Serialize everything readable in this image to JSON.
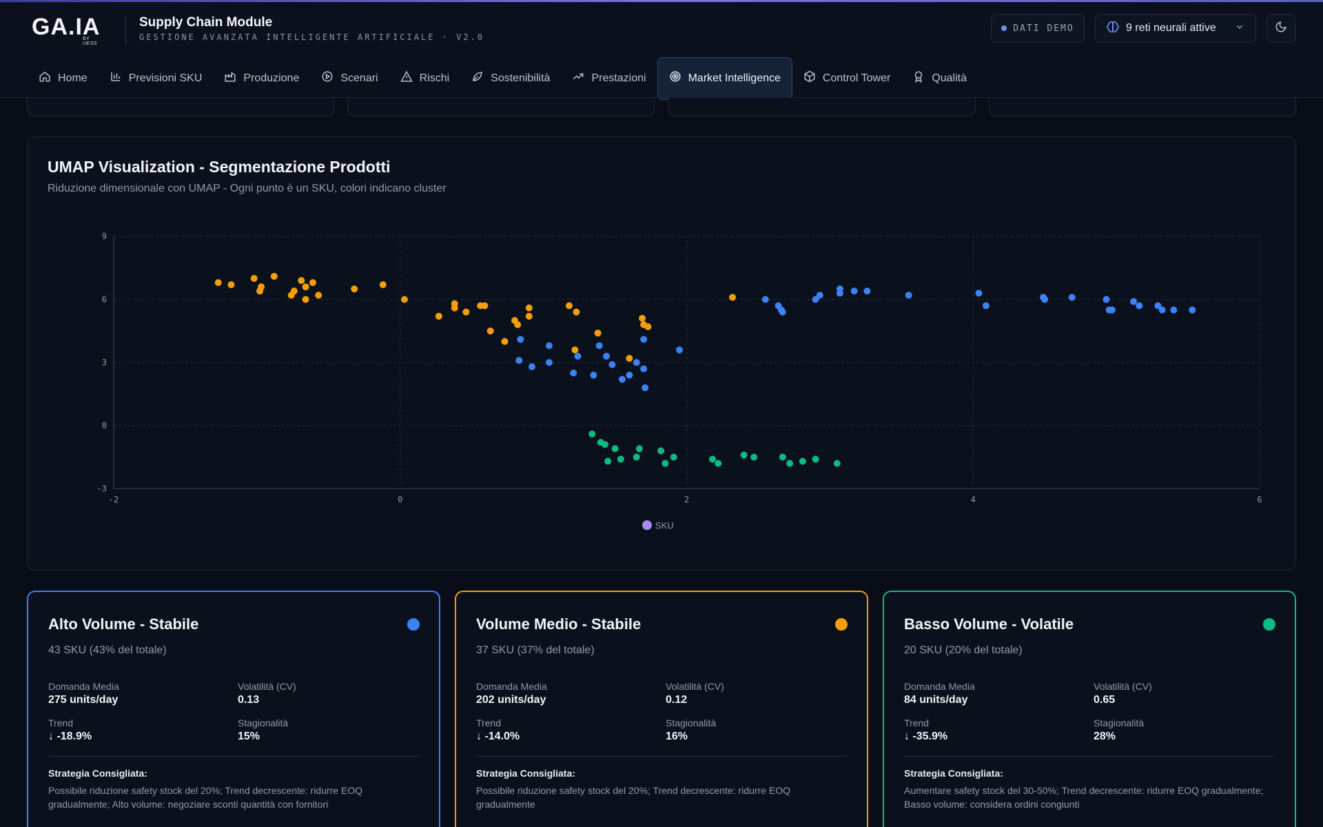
{
  "header": {
    "logo_text": "GA.IA",
    "logo_sub": "BY UESS",
    "app_title": "Supply Chain Module",
    "app_subtitle": "GESTIONE AVANZATA INTELLIGENTE ARTIFICIALE · V2.0",
    "demo_badge": "DATI DEMO",
    "nets_label": "9 reti neurali attive"
  },
  "nav": [
    {
      "label": "Home",
      "icon": "home-icon"
    },
    {
      "label": "Previsioni SKU",
      "icon": "bar-chart-icon"
    },
    {
      "label": "Produzione",
      "icon": "factory-icon"
    },
    {
      "label": "Scenari",
      "icon": "play-circle-icon"
    },
    {
      "label": "Rischi",
      "icon": "warning-icon"
    },
    {
      "label": "Sostenibilità",
      "icon": "leaf-icon"
    },
    {
      "label": "Prestazioni",
      "icon": "trending-up-icon"
    },
    {
      "label": "Market Intelligence",
      "icon": "target-icon",
      "active": true
    },
    {
      "label": "Control Tower",
      "icon": "box-icon"
    },
    {
      "label": "Qualità",
      "icon": "award-icon"
    }
  ],
  "umap": {
    "title": "UMAP Visualization - Segmentazione Prodotti",
    "description": "Riduzione dimensionale con UMAP - Ogni punto è un SKU, colori indicano cluster"
  },
  "chart_data": {
    "type": "scatter",
    "xlim": [
      -2,
      6
    ],
    "ylim": [
      -3,
      9
    ],
    "x_ticks": [
      "-2",
      "0",
      "2",
      "4",
      "6"
    ],
    "y_ticks": [
      "-3",
      "0",
      "3",
      "6",
      "9"
    ],
    "grid": true,
    "legend": [
      "SKU"
    ],
    "legend_position": "bottom-center",
    "colors": {
      "blue": "#3b82f6",
      "orange": "#f59e0b",
      "green": "#10b981",
      "legend": "#a78bfa"
    },
    "series": [
      {
        "color": "orange",
        "points": [
          [
            -1.27,
            6.8
          ],
          [
            -1.18,
            6.7
          ],
          [
            -1.02,
            7.0
          ],
          [
            -0.97,
            6.6
          ],
          [
            -0.98,
            6.4
          ],
          [
            -0.88,
            7.1
          ],
          [
            -0.76,
            6.2
          ],
          [
            -0.74,
            6.4
          ],
          [
            -0.69,
            6.9
          ],
          [
            -0.66,
            6.6
          ],
          [
            -0.66,
            6.0
          ],
          [
            -0.61,
            6.8
          ],
          [
            -0.57,
            6.2
          ],
          [
            -0.32,
            6.5
          ],
          [
            -0.12,
            6.7
          ],
          [
            0.03,
            6.0
          ],
          [
            0.27,
            5.2
          ],
          [
            0.38,
            5.8
          ],
          [
            0.38,
            5.6
          ],
          [
            0.46,
            5.4
          ],
          [
            0.56,
            5.7
          ],
          [
            0.59,
            5.7
          ],
          [
            0.63,
            4.5
          ],
          [
            0.73,
            4.0
          ],
          [
            0.8,
            5.0
          ],
          [
            0.82,
            4.8
          ],
          [
            0.9,
            5.2
          ],
          [
            0.9,
            5.6
          ],
          [
            1.18,
            5.7
          ],
          [
            1.23,
            5.4
          ],
          [
            1.22,
            3.6
          ],
          [
            1.38,
            4.4
          ],
          [
            1.6,
            3.2
          ],
          [
            1.69,
            5.1
          ],
          [
            1.7,
            4.8
          ],
          [
            1.73,
            4.7
          ],
          [
            2.32,
            6.1
          ]
        ]
      },
      {
        "color": "blue",
        "points": [
          [
            0.84,
            4.1
          ],
          [
            0.83,
            3.1
          ],
          [
            0.92,
            2.8
          ],
          [
            1.04,
            3.8
          ],
          [
            1.04,
            3.0
          ],
          [
            1.21,
            2.5
          ],
          [
            1.24,
            3.3
          ],
          [
            1.35,
            2.4
          ],
          [
            1.39,
            3.8
          ],
          [
            1.44,
            3.3
          ],
          [
            1.48,
            2.9
          ],
          [
            1.55,
            2.2
          ],
          [
            1.6,
            2.4
          ],
          [
            1.65,
            3.0
          ],
          [
            1.7,
            2.7
          ],
          [
            1.71,
            1.8
          ],
          [
            1.7,
            4.1
          ],
          [
            1.95,
            3.6
          ],
          [
            2.55,
            6.0
          ],
          [
            2.64,
            5.7
          ],
          [
            2.66,
            5.5
          ],
          [
            2.67,
            5.4
          ],
          [
            2.9,
            6.0
          ],
          [
            2.93,
            6.2
          ],
          [
            3.07,
            6.5
          ],
          [
            3.07,
            6.3
          ],
          [
            3.17,
            6.4
          ],
          [
            3.26,
            6.4
          ],
          [
            3.55,
            6.2
          ],
          [
            4.04,
            6.3
          ],
          [
            4.09,
            5.7
          ],
          [
            4.49,
            6.1
          ],
          [
            4.5,
            6.0
          ],
          [
            4.69,
            6.1
          ],
          [
            4.93,
            6.0
          ],
          [
            4.95,
            5.5
          ],
          [
            4.97,
            5.5
          ],
          [
            5.12,
            5.9
          ],
          [
            5.16,
            5.7
          ],
          [
            5.29,
            5.7
          ],
          [
            5.32,
            5.5
          ],
          [
            5.4,
            5.5
          ],
          [
            5.53,
            5.5
          ]
        ]
      },
      {
        "color": "green",
        "points": [
          [
            1.34,
            -0.4
          ],
          [
            1.4,
            -0.8
          ],
          [
            1.43,
            -0.9
          ],
          [
            1.45,
            -1.7
          ],
          [
            1.5,
            -1.1
          ],
          [
            1.54,
            -1.6
          ],
          [
            1.65,
            -1.5
          ],
          [
            1.67,
            -1.1
          ],
          [
            1.82,
            -1.2
          ],
          [
            1.85,
            -1.8
          ],
          [
            1.91,
            -1.5
          ],
          [
            2.18,
            -1.6
          ],
          [
            2.22,
            -1.8
          ],
          [
            2.4,
            -1.4
          ],
          [
            2.47,
            -1.5
          ],
          [
            2.67,
            -1.5
          ],
          [
            2.72,
            -1.8
          ],
          [
            2.81,
            -1.7
          ],
          [
            2.9,
            -1.6
          ],
          [
            3.05,
            -1.8
          ]
        ]
      }
    ]
  },
  "clusters": [
    {
      "title": "Alto Volume - Stabile",
      "color": "#3b82f6",
      "subtitle": "43 SKU (43% del totale)",
      "demand_label": "Domanda Media",
      "demand": "275 units/day",
      "vol_label": "Volatilità (CV)",
      "vol": "0.13",
      "trend_label": "Trend",
      "trend": "↓ -18.9%",
      "season_label": "Stagionalità",
      "season": "15%",
      "strategy_title": "Strategia Consigliata:",
      "strategy": "Possibile riduzione safety stock del 20%; Trend decrescente: ridurre EOQ gradualmente; Alto volume: negoziare sconti quantità con fornitori"
    },
    {
      "title": "Volume Medio - Stabile",
      "color": "#f59e0b",
      "subtitle": "37 SKU (37% del totale)",
      "demand_label": "Domanda Media",
      "demand": "202 units/day",
      "vol_label": "Volatilità (CV)",
      "vol": "0.12",
      "trend_label": "Trend",
      "trend": "↓ -14.0%",
      "season_label": "Stagionalità",
      "season": "16%",
      "strategy_title": "Strategia Consigliata:",
      "strategy": "Possibile riduzione safety stock del 20%; Trend decrescente: ridurre EOQ gradualmente"
    },
    {
      "title": "Basso Volume - Volatile",
      "color": "#10b981",
      "subtitle": "20 SKU (20% del totale)",
      "demand_label": "Domanda Media",
      "demand": "84 units/day",
      "vol_label": "Volatilità (CV)",
      "vol": "0.65",
      "trend_label": "Trend",
      "trend": "↓ -35.9%",
      "season_label": "Stagionalità",
      "season": "28%",
      "strategy_title": "Strategia Consigliata:",
      "strategy": "Aumentare safety stock del 30-50%; Trend decrescente: ridurre EOQ gradualmente; Basso volume: considera ordini congiunti"
    }
  ]
}
